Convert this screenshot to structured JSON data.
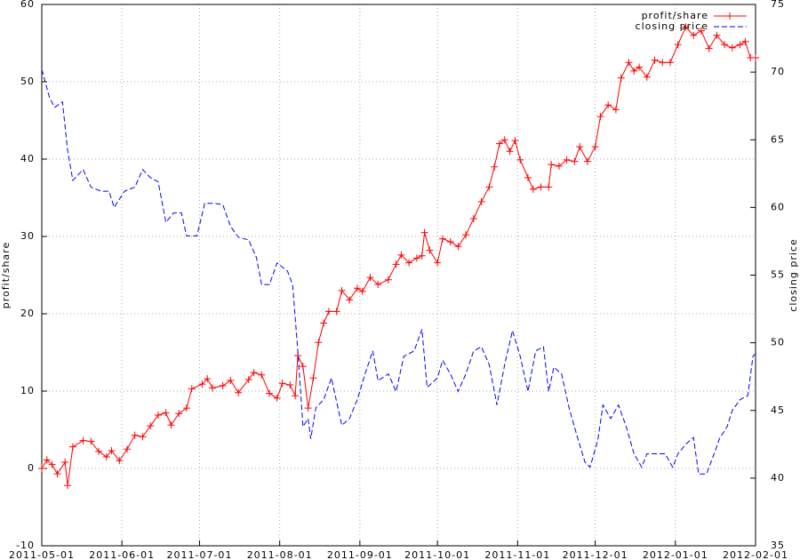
{
  "chart_data": {
    "type": "line",
    "y_label": "profit/share",
    "y2_label": "closing price",
    "xlim": [
      "2011-05-01",
      "2012-02-01"
    ],
    "xticks": [
      "2011-05-01",
      "2011-06-01",
      "2011-07-01",
      "2011-08-01",
      "2011-09-01",
      "2011-10-01",
      "2011-11-01",
      "2011-12-01",
      "2012-01-01",
      "2012-02-01"
    ],
    "ylim": [
      -10,
      60
    ],
    "yticks": [
      -10,
      0,
      10,
      20,
      30,
      40,
      50,
      60
    ],
    "y2lim": [
      35,
      75
    ],
    "y2ticks": [
      35,
      40,
      45,
      50,
      55,
      60,
      65,
      70,
      75
    ],
    "grid": true,
    "legend": "top-right",
    "series": [
      {
        "name": "profit/share",
        "color": "#ff0000",
        "marker": "plus",
        "dash": false,
        "x": [
          "2011-05-01",
          "2011-05-03",
          "2011-05-05",
          "2011-05-07",
          "2011-05-10",
          "2011-05-11",
          "2011-05-13",
          "2011-05-17",
          "2011-05-20",
          "2011-05-23",
          "2011-05-26",
          "2011-05-28",
          "2011-05-31",
          "2011-06-03",
          "2011-06-06",
          "2011-06-09",
          "2011-06-12",
          "2011-06-15",
          "2011-06-18",
          "2011-06-20",
          "2011-06-23",
          "2011-06-26",
          "2011-06-28",
          "2011-07-02",
          "2011-07-04",
          "2011-07-06",
          "2011-07-10",
          "2011-07-13",
          "2011-07-16",
          "2011-07-20",
          "2011-07-22",
          "2011-07-25",
          "2011-07-28",
          "2011-07-31",
          "2011-08-02",
          "2011-08-05",
          "2011-08-07",
          "2011-08-08",
          "2011-08-10",
          "2011-08-12",
          "2011-08-14",
          "2011-08-16",
          "2011-08-18",
          "2011-08-20",
          "2011-08-23",
          "2011-08-25",
          "2011-08-28",
          "2011-08-31",
          "2011-09-02",
          "2011-09-05",
          "2011-09-08",
          "2011-09-12",
          "2011-09-15",
          "2011-09-17",
          "2011-09-20",
          "2011-09-23",
          "2011-09-25",
          "2011-09-26",
          "2011-09-28",
          "2011-10-01",
          "2011-10-03",
          "2011-10-06",
          "2011-10-09",
          "2011-10-12",
          "2011-10-15",
          "2011-10-18",
          "2011-10-21",
          "2011-10-23",
          "2011-10-25",
          "2011-10-27",
          "2011-10-29",
          "2011-10-31",
          "2011-11-02",
          "2011-11-05",
          "2011-11-07",
          "2011-11-10",
          "2011-11-13",
          "2011-11-14",
          "2011-11-17",
          "2011-11-20",
          "2011-11-23",
          "2011-11-25",
          "2011-11-28",
          "2011-12-01",
          "2011-12-03",
          "2011-12-06",
          "2011-12-09",
          "2011-12-11",
          "2011-12-14",
          "2011-12-16",
          "2011-12-18",
          "2011-12-21",
          "2011-12-24",
          "2011-12-27",
          "2011-12-30",
          "2012-01-02",
          "2012-01-05",
          "2012-01-08",
          "2012-01-11",
          "2012-01-14",
          "2012-01-17",
          "2012-01-20",
          "2012-01-23",
          "2012-01-26",
          "2012-01-28",
          "2012-01-30",
          "2012-02-01"
        ],
        "values": [
          0,
          1.1,
          0.5,
          -0.7,
          0.8,
          -2.2,
          2.8,
          3.6,
          3.5,
          2.2,
          1.5,
          2.3,
          1.0,
          2.5,
          4.3,
          4.1,
          5.5,
          6.9,
          7.2,
          5.6,
          7.1,
          7.8,
          10.3,
          10.9,
          11.6,
          10.4,
          10.7,
          11.4,
          9.8,
          11.5,
          12.4,
          12.1,
          9.7,
          9.1,
          11.0,
          10.8,
          9.4,
          14.6,
          13.2,
          7.8,
          11.7,
          16.3,
          18.8,
          20.3,
          20.3,
          23.0,
          21.8,
          23.3,
          22.9,
          24.7,
          23.8,
          24.4,
          26.4,
          27.6,
          26.6,
          27.2,
          27.5,
          30.5,
          28.2,
          26.6,
          29.7,
          29.3,
          28.7,
          30.2,
          32.3,
          34.5,
          36.4,
          39.0,
          42.0,
          42.5,
          41.0,
          42.4,
          39.9,
          37.6,
          36.1,
          36.4,
          36.4,
          39.3,
          39.1,
          39.9,
          39.7,
          41.6,
          39.7,
          41.6,
          45.5,
          47.0,
          46.4,
          50.5,
          52.5,
          51.4,
          51.9,
          50.6,
          52.8,
          52.5,
          52.5,
          54.8,
          57.1,
          56.0,
          56.6,
          54.3,
          56.0,
          54.8,
          54.4,
          54.8,
          55.2,
          53.1,
          53.1
        ]
      },
      {
        "name": "closing price",
        "color": "#0000ff",
        "marker": "none",
        "dash": true,
        "axis": "y2",
        "x": [
          "2011-05-01",
          "2011-05-04",
          "2011-05-06",
          "2011-05-09",
          "2011-05-11",
          "2011-05-13",
          "2011-05-17",
          "2011-05-20",
          "2011-05-24",
          "2011-05-27",
          "2011-05-29",
          "2011-06-02",
          "2011-06-06",
          "2011-06-09",
          "2011-06-12",
          "2011-06-15",
          "2011-06-18",
          "2011-06-21",
          "2011-06-24",
          "2011-06-26",
          "2011-06-30",
          "2011-07-03",
          "2011-07-07",
          "2011-07-10",
          "2011-07-13",
          "2011-07-16",
          "2011-07-20",
          "2011-07-23",
          "2011-07-25",
          "2011-07-28",
          "2011-07-31",
          "2011-08-04",
          "2011-08-06",
          "2011-08-08",
          "2011-08-10",
          "2011-08-12",
          "2011-08-13",
          "2011-08-15",
          "2011-08-18",
          "2011-08-21",
          "2011-08-25",
          "2011-08-28",
          "2011-08-31",
          "2011-09-03",
          "2011-09-06",
          "2011-09-08",
          "2011-09-12",
          "2011-09-15",
          "2011-09-18",
          "2011-09-22",
          "2011-09-25",
          "2011-09-27",
          "2011-10-01",
          "2011-10-03",
          "2011-10-06",
          "2011-10-09",
          "2011-10-12",
          "2011-10-15",
          "2011-10-18",
          "2011-10-21",
          "2011-10-24",
          "2011-10-27",
          "2011-10-30",
          "2011-11-02",
          "2011-11-05",
          "2011-11-08",
          "2011-11-11",
          "2011-11-13",
          "2011-11-15",
          "2011-11-18",
          "2011-11-21",
          "2011-11-24",
          "2011-11-27",
          "2011-11-29",
          "2011-12-02",
          "2011-12-04",
          "2011-12-07",
          "2011-12-10",
          "2011-12-13",
          "2011-12-16",
          "2011-12-19",
          "2011-12-21",
          "2011-12-24",
          "2011-12-28",
          "2011-12-31",
          "2012-01-02",
          "2012-01-05",
          "2012-01-08",
          "2012-01-10",
          "2012-01-13",
          "2012-01-16",
          "2012-01-18",
          "2012-01-21",
          "2012-01-23",
          "2012-01-26",
          "2012-01-29",
          "2012-01-31",
          "2012-02-01"
        ],
        "values": [
          70.2,
          68.1,
          67.4,
          67.8,
          64.2,
          62.0,
          62.8,
          61.5,
          61.2,
          61.2,
          60.0,
          61.2,
          61.5,
          62.8,
          62.2,
          61.9,
          58.9,
          59.6,
          59.6,
          57.9,
          57.9,
          60.3,
          60.3,
          60.2,
          58.6,
          57.8,
          57.6,
          56.3,
          54.3,
          54.3,
          55.9,
          55.3,
          54.3,
          49.4,
          43.8,
          44.4,
          42.9,
          45.2,
          45.8,
          47.4,
          43.9,
          44.4,
          45.8,
          47.7,
          49.4,
          47.2,
          47.7,
          46.4,
          49.0,
          49.4,
          51.0,
          46.7,
          47.4,
          48.7,
          47.7,
          46.4,
          47.7,
          49.4,
          49.7,
          48.4,
          45.4,
          48.4,
          50.9,
          49.0,
          46.4,
          49.4,
          49.7,
          46.4,
          48.2,
          47.7,
          45.1,
          43.1,
          41.2,
          40.8,
          42.8,
          45.4,
          44.4,
          45.4,
          43.8,
          41.8,
          40.8,
          41.8,
          41.8,
          41.8,
          40.8,
          41.8,
          42.5,
          43.0,
          40.3,
          40.3,
          41.8,
          42.9,
          43.8,
          45.0,
          45.8,
          46.1,
          49.0,
          49.2
        ]
      }
    ]
  }
}
